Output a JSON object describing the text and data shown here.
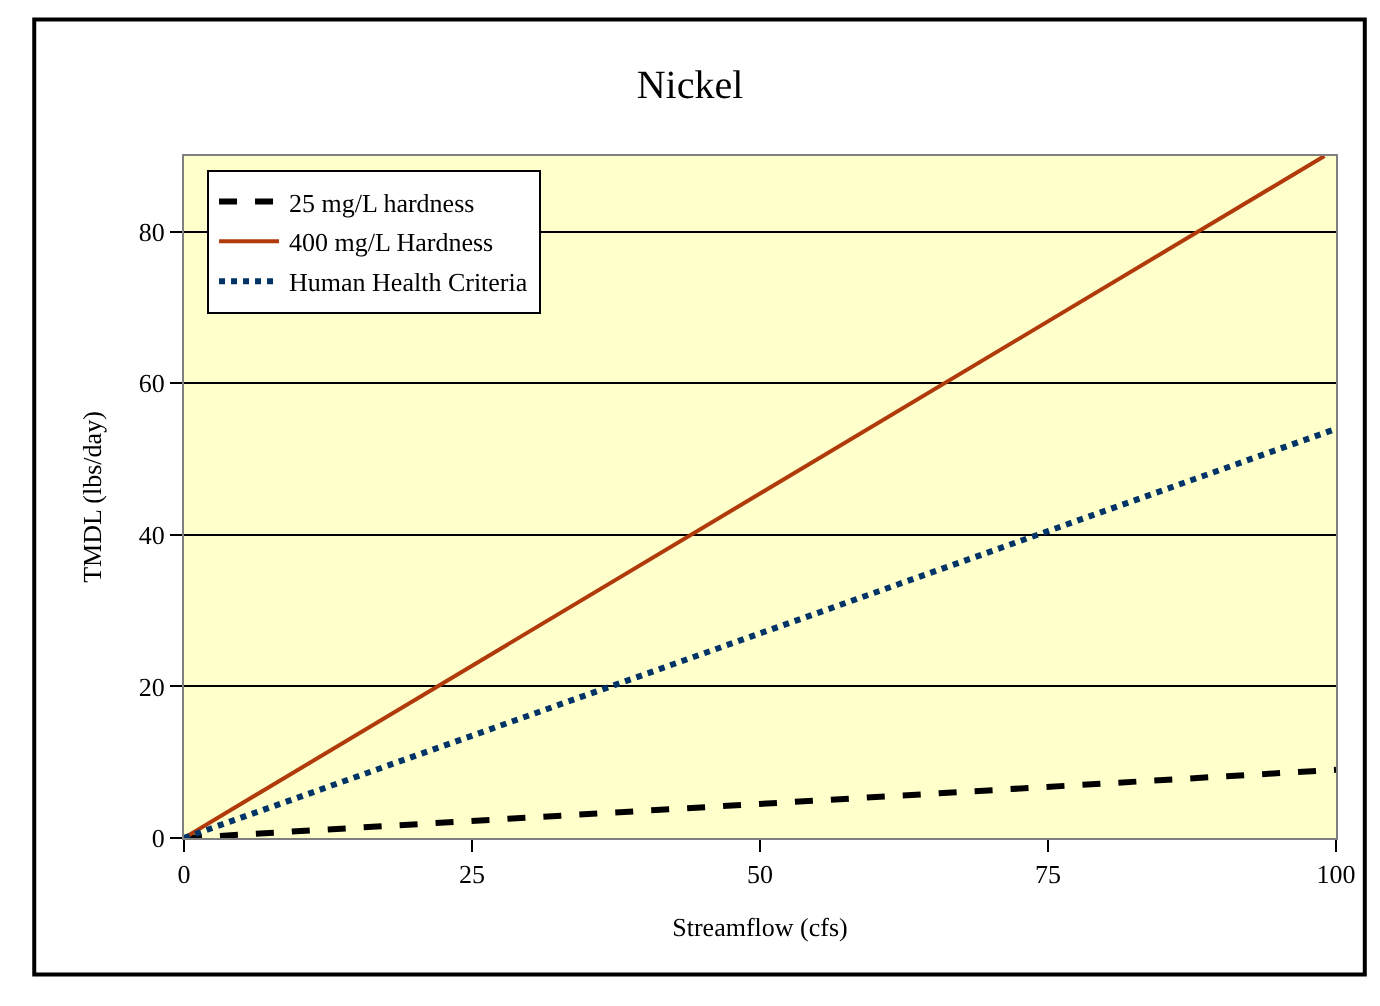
{
  "chart_data": {
    "type": "line",
    "title": "Nickel",
    "xlabel": "Streamflow (cfs)",
    "ylabel": "TMDL (lbs/day)",
    "xlim": [
      0,
      100
    ],
    "xticks": [
      0,
      25,
      50,
      75,
      100
    ],
    "ylim": [
      0,
      90
    ],
    "yticks": [
      0,
      20,
      40,
      60,
      80
    ],
    "grid": "y",
    "legend": "top left",
    "series": [
      {
        "name": "25 mg/L hardness",
        "color": "#000000",
        "line_style": "dashed",
        "x": [
          0,
          100
        ],
        "values": [
          0,
          9
        ]
      },
      {
        "name": "400 mg/L Hardness",
        "color": "#b03a0a",
        "line_style": "solid",
        "x": [
          0,
          99
        ],
        "values": [
          0,
          90
        ]
      },
      {
        "name": "Human Health Criteria",
        "color": "#003366",
        "line_style": "dotted",
        "x": [
          0,
          75,
          100
        ],
        "values": [
          0,
          40.5,
          54
        ]
      }
    ]
  }
}
